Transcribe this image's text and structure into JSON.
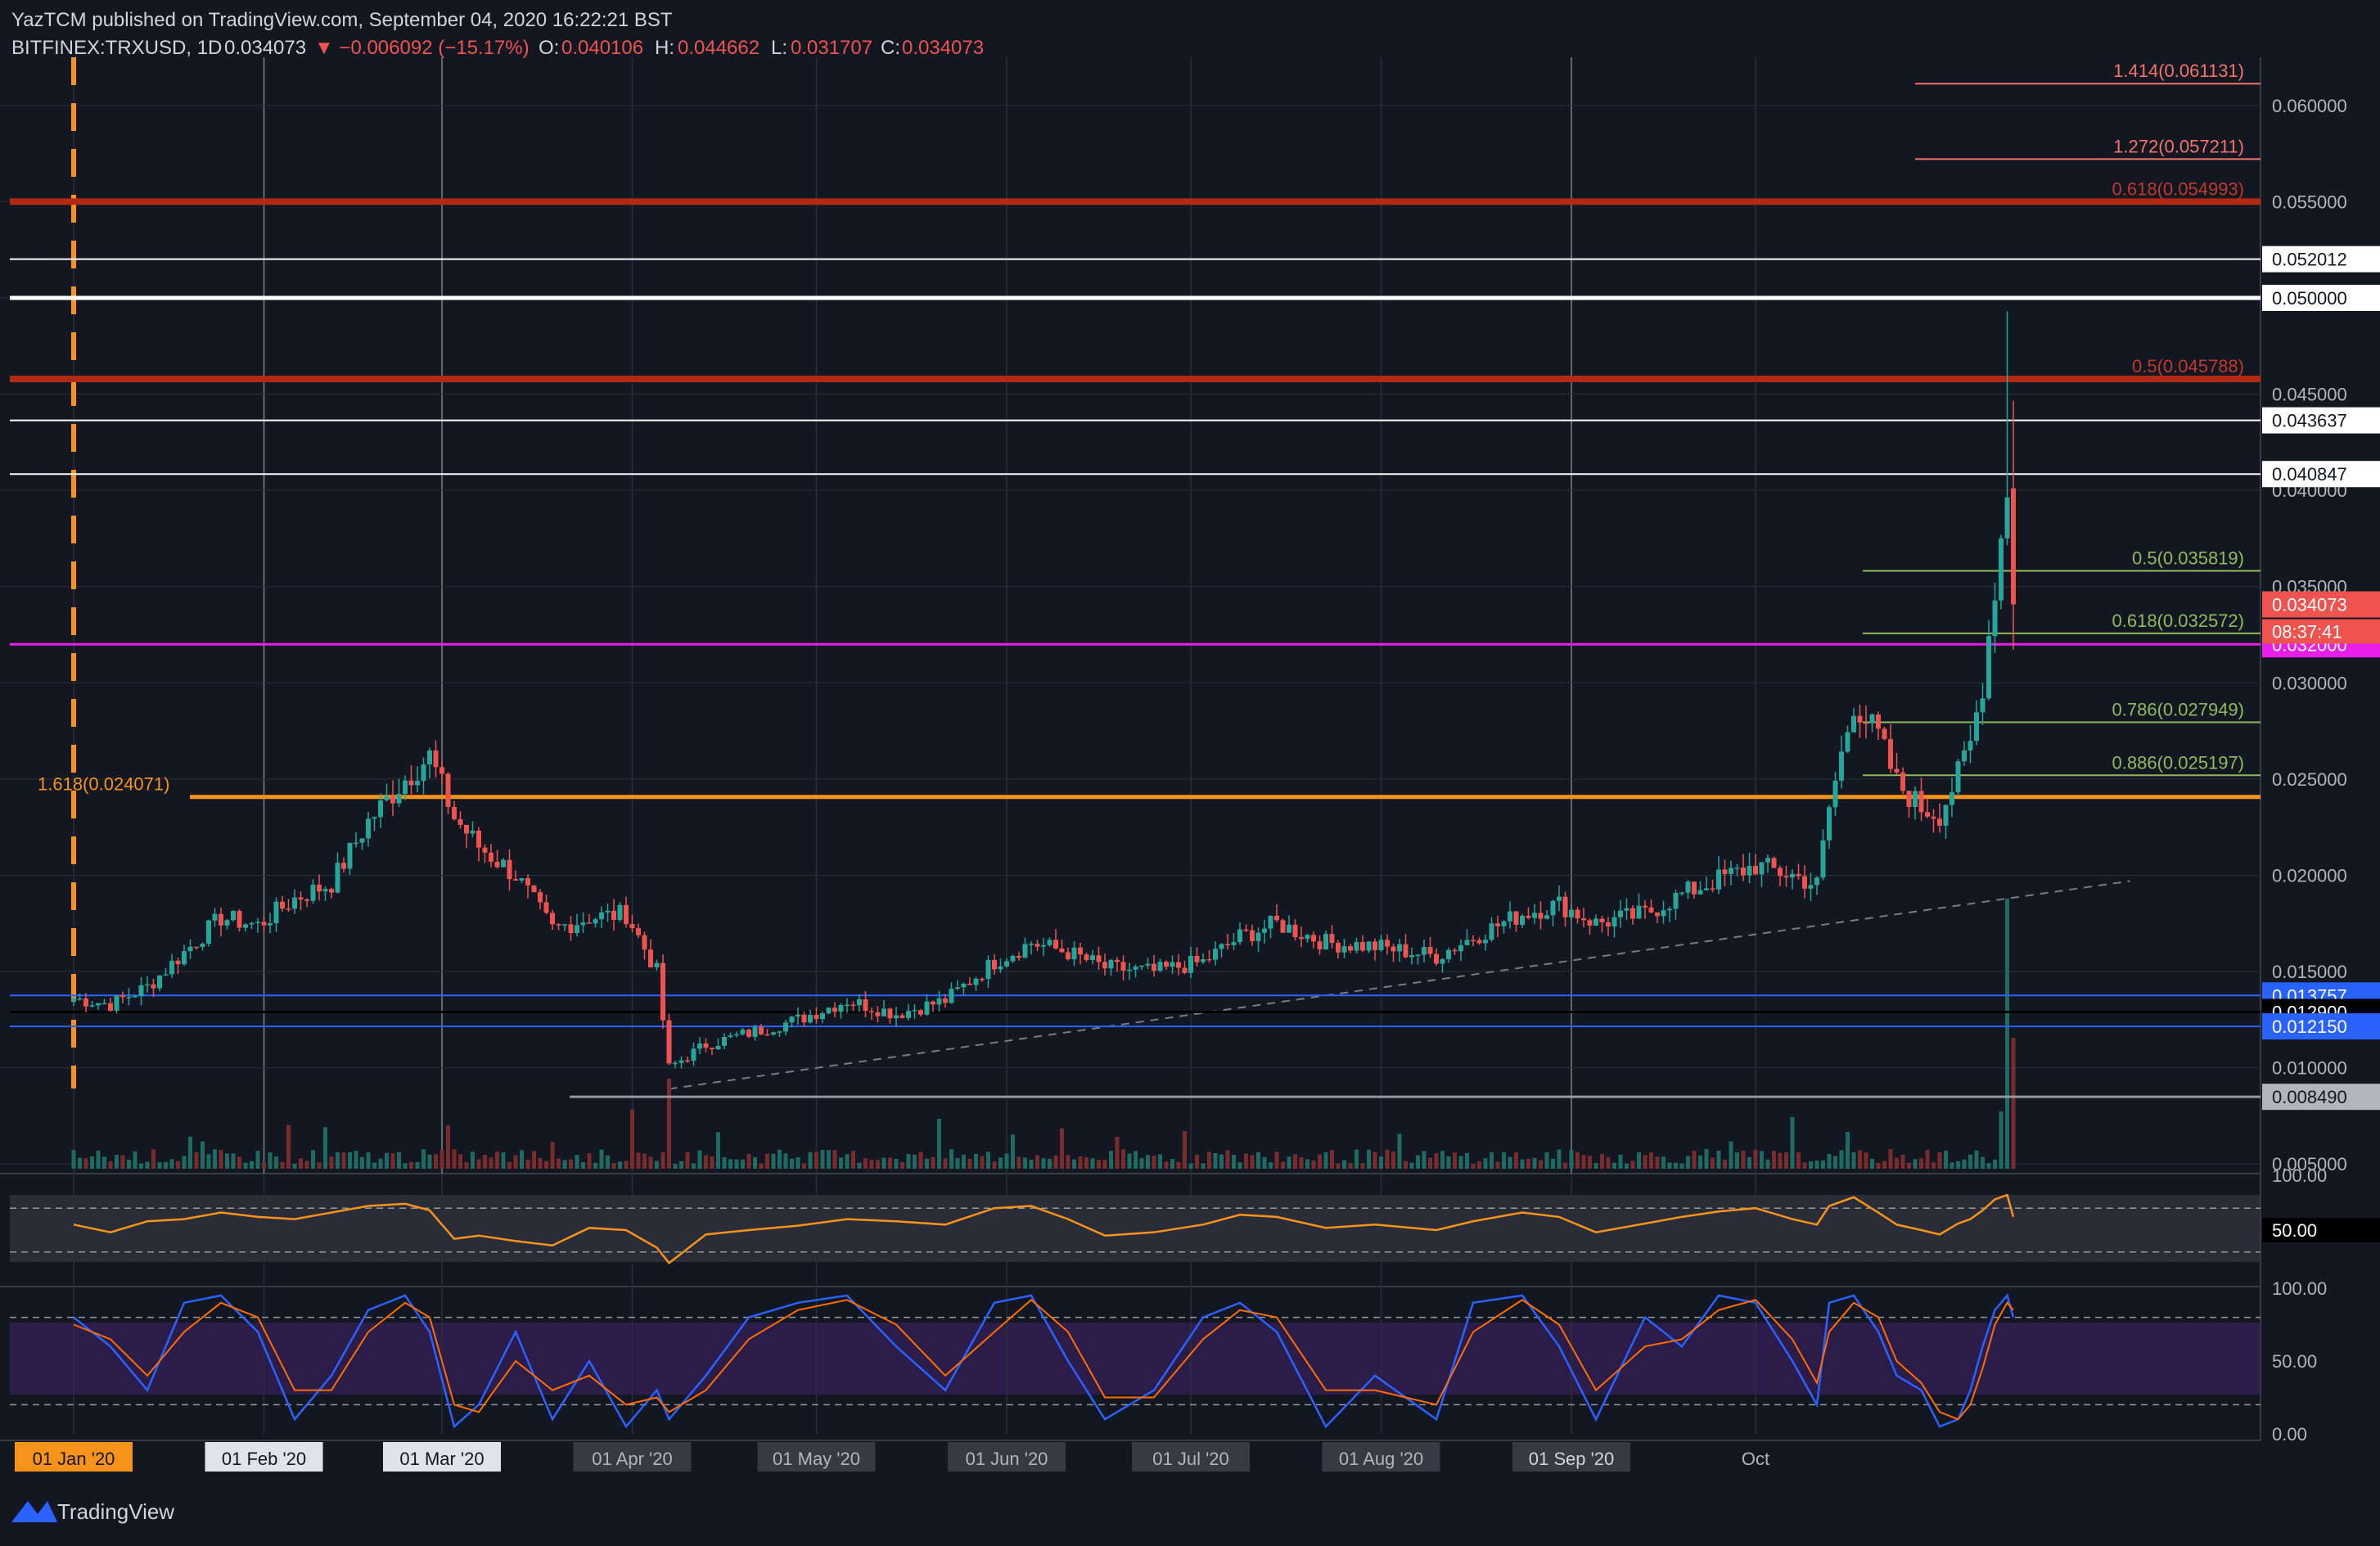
{
  "header": {
    "publisher_line": "YazTCM published on TradingView.com, September 04, 2020 16:22:21 BST",
    "symbol": "BITFINEX:TRXUSD, 1D",
    "last": "0.034073",
    "change": "▼ −0.006092 (−15.17%)",
    "o_label": "O:",
    "o": "0.040106",
    "h_label": "H:",
    "h": "0.044662",
    "l_label": "L:",
    "l": "0.031707",
    "c_label": "C:",
    "c": "0.034073"
  },
  "footer": {
    "brand": "TradingView"
  },
  "colors": {
    "bg": "#131722",
    "grid": "#2a2e39",
    "up": "#26a69a",
    "down": "#ef5350",
    "orange": "#f7931a",
    "red_line": "#b22a14",
    "magenta": "#e91ee9",
    "blue": "#2962ff",
    "fib_red": "#f57468",
    "fib_green": "#8fbc5a",
    "white": "#ffffff"
  },
  "chart_data": [
    {
      "type": "candlestick",
      "title": "BITFINEX:TRXUSD, 1D",
      "x_ticks": [
        "01 Jan '20",
        "01 Feb '20",
        "01 Mar '20",
        "01 Apr '20",
        "01 May '20",
        "01 Jun '20",
        "01 Jul '20",
        "01 Aug '20",
        "01 Sep '20",
        "Oct"
      ],
      "y_ticks": [
        "0.060000",
        "0.055000",
        "0.050000",
        "0.045000",
        "0.040000",
        "0.035000",
        "0.030000",
        "0.025000",
        "0.020000",
        "0.015000",
        "0.010000",
        "0.005000"
      ],
      "ylim": [
        0.0045,
        0.0625
      ],
      "grid": true,
      "candle_anchors": [
        {
          "day": 0,
          "close": 0.0136
        },
        {
          "day": 6,
          "close": 0.0133
        },
        {
          "day": 12,
          "close": 0.0142
        },
        {
          "day": 18,
          "close": 0.016
        },
        {
          "day": 24,
          "close": 0.0178
        },
        {
          "day": 30,
          "close": 0.0174
        },
        {
          "day": 36,
          "close": 0.0188
        },
        {
          "day": 42,
          "close": 0.0196
        },
        {
          "day": 48,
          "close": 0.0228
        },
        {
          "day": 54,
          "close": 0.025
        },
        {
          "day": 58,
          "close": 0.0262
        },
        {
          "day": 62,
          "close": 0.023
        },
        {
          "day": 66,
          "close": 0.0215
        },
        {
          "day": 72,
          "close": 0.02
        },
        {
          "day": 78,
          "close": 0.0172
        },
        {
          "day": 84,
          "close": 0.0178
        },
        {
          "day": 90,
          "close": 0.018
        },
        {
          "day": 95,
          "close": 0.015
        },
        {
          "day": 97,
          "close": 0.01
        },
        {
          "day": 103,
          "close": 0.0112
        },
        {
          "day": 110,
          "close": 0.0118
        },
        {
          "day": 118,
          "close": 0.0125
        },
        {
          "day": 126,
          "close": 0.0135
        },
        {
          "day": 134,
          "close": 0.0128
        },
        {
          "day": 142,
          "close": 0.0135
        },
        {
          "day": 150,
          "close": 0.0155
        },
        {
          "day": 156,
          "close": 0.0165
        },
        {
          "day": 162,
          "close": 0.016
        },
        {
          "day": 168,
          "close": 0.0152
        },
        {
          "day": 176,
          "close": 0.015
        },
        {
          "day": 184,
          "close": 0.0155
        },
        {
          "day": 190,
          "close": 0.0168
        },
        {
          "day": 196,
          "close": 0.0175
        },
        {
          "day": 204,
          "close": 0.0165
        },
        {
          "day": 212,
          "close": 0.0163
        },
        {
          "day": 222,
          "close": 0.0158
        },
        {
          "day": 228,
          "close": 0.0168
        },
        {
          "day": 236,
          "close": 0.018
        },
        {
          "day": 242,
          "close": 0.0185
        },
        {
          "day": 248,
          "close": 0.0175
        },
        {
          "day": 256,
          "close": 0.018
        },
        {
          "day": 262,
          "close": 0.019
        },
        {
          "day": 268,
          "close": 0.0198
        },
        {
          "day": 274,
          "close": 0.0205
        },
        {
          "day": 280,
          "close": 0.02
        },
        {
          "day": 284,
          "close": 0.0195
        },
        {
          "day": 286,
          "close": 0.0235
        },
        {
          "day": 290,
          "close": 0.029
        },
        {
          "day": 294,
          "close": 0.0272
        },
        {
          "day": 297,
          "close": 0.0248
        },
        {
          "day": 301,
          "close": 0.0235
        },
        {
          "day": 304,
          "close": 0.0232
        },
        {
          "day": 307,
          "close": 0.0252
        },
        {
          "day": 309,
          "close": 0.0268
        },
        {
          "day": 311,
          "close": 0.03
        },
        {
          "day": 313,
          "close": 0.035
        },
        {
          "day": 315,
          "close": 0.0401
        },
        {
          "day": 316,
          "close": 0.0341
        }
      ],
      "last_candle": {
        "open": 0.040106,
        "high": 0.044662,
        "low": 0.031707,
        "close": 0.034073
      },
      "horizontal_levels": [
        {
          "value": 0.055,
          "color": "red"
        },
        {
          "value": 0.052012,
          "color": "white",
          "label": "0.052012"
        },
        {
          "value": 0.05,
          "color": "white",
          "label": "0.050000"
        },
        {
          "value": 0.045788,
          "color": "red"
        },
        {
          "value": 0.043637,
          "color": "white",
          "label": "0.043637"
        },
        {
          "value": 0.040847,
          "color": "white",
          "label": "0.040847"
        },
        {
          "value": 0.032,
          "color": "magenta",
          "label": "0.032000"
        },
        {
          "value": 0.024071,
          "color": "orange"
        },
        {
          "value": 0.013757,
          "color": "blue",
          "label": "0.013757"
        },
        {
          "value": 0.0129,
          "color": "dark",
          "label": "0.012900"
        },
        {
          "value": 0.01215,
          "color": "blue",
          "label": "0.012150"
        },
        {
          "value": 0.00849,
          "color": "gray",
          "label": "0.008490"
        }
      ],
      "fib_levels": [
        {
          "label": "1.414(0.061131)",
          "value": 0.061131
        },
        {
          "label": "1.272(0.057211)",
          "value": 0.057211
        },
        {
          "label": "0.618(0.054993)",
          "value": 0.054993
        },
        {
          "label": "0.5(0.045788)",
          "value": 0.045788
        },
        {
          "label": "0.5(0.035819)",
          "value": 0.035819
        },
        {
          "label": "0.618(0.032572)",
          "value": 0.032572
        },
        {
          "label": "0.786(0.027949)",
          "value": 0.027949
        },
        {
          "label": "0.886(0.025197)",
          "value": 0.025197
        },
        {
          "label": "1.618(0.024071)",
          "value": 0.024071
        }
      ],
      "price_label": {
        "value": "0.034073",
        "countdown": "08:37:41"
      },
      "annotations": [
        "dashed orange vertical line at 01 Jan '20",
        "dashed gray rising trend line"
      ]
    },
    {
      "type": "line",
      "name": "RSI",
      "y_ticks": [
        "100.00",
        "50.00"
      ],
      "levels": [
        70,
        30
      ],
      "ylim": [
        0,
        100
      ],
      "x_days": [
        0,
        6,
        12,
        18,
        24,
        30,
        36,
        42,
        48,
        54,
        58,
        62,
        66,
        72,
        78,
        84,
        90,
        95,
        97,
        103,
        110,
        118,
        126,
        134,
        142,
        150,
        156,
        162,
        168,
        176,
        184,
        190,
        196,
        204,
        212,
        222,
        228,
        236,
        242,
        248,
        256,
        262,
        268,
        274,
        280,
        284,
        286,
        290,
        294,
        297,
        301,
        304,
        307,
        309,
        311,
        313,
        315,
        316
      ],
      "values": [
        55,
        48,
        58,
        60,
        66,
        62,
        60,
        66,
        72,
        74,
        68,
        42,
        45,
        40,
        36,
        52,
        50,
        34,
        20,
        46,
        50,
        54,
        60,
        58,
        55,
        70,
        72,
        60,
        45,
        48,
        55,
        64,
        62,
        52,
        55,
        50,
        58,
        66,
        62,
        48,
        56,
        62,
        67,
        70,
        60,
        55,
        72,
        80,
        66,
        55,
        50,
        46,
        56,
        60,
        68,
        78,
        82,
        62
      ]
    },
    {
      "type": "line",
      "name": "Stoch RSI",
      "y_ticks": [
        "100.00",
        "50.00",
        "0.00"
      ],
      "levels": [
        80,
        20
      ],
      "ylim": [
        0,
        100
      ],
      "x_days": [
        0,
        6,
        12,
        18,
        24,
        30,
        36,
        42,
        48,
        54,
        58,
        62,
        66,
        72,
        78,
        84,
        90,
        95,
        97,
        103,
        110,
        118,
        126,
        134,
        142,
        150,
        156,
        162,
        168,
        176,
        184,
        190,
        196,
        204,
        212,
        222,
        228,
        236,
        242,
        248,
        256,
        262,
        268,
        274,
        280,
        284,
        286,
        290,
        294,
        297,
        301,
        304,
        307,
        309,
        311,
        313,
        315,
        316
      ],
      "k_values": [
        80,
        60,
        30,
        90,
        95,
        70,
        10,
        40,
        85,
        95,
        70,
        5,
        20,
        70,
        10,
        50,
        5,
        30,
        10,
        40,
        80,
        90,
        95,
        60,
        30,
        90,
        95,
        50,
        10,
        30,
        80,
        90,
        70,
        5,
        40,
        10,
        90,
        95,
        60,
        10,
        80,
        60,
        95,
        90,
        50,
        20,
        90,
        95,
        70,
        40,
        30,
        5,
        10,
        30,
        60,
        85,
        95,
        80
      ],
      "d_values": [
        75,
        65,
        40,
        70,
        90,
        80,
        30,
        30,
        70,
        90,
        80,
        20,
        15,
        50,
        30,
        40,
        20,
        25,
        15,
        30,
        65,
        85,
        92,
        75,
        40,
        70,
        92,
        70,
        25,
        25,
        65,
        85,
        80,
        30,
        30,
        20,
        70,
        92,
        75,
        30,
        60,
        65,
        85,
        92,
        65,
        35,
        70,
        90,
        80,
        50,
        35,
        15,
        10,
        20,
        45,
        75,
        90,
        85
      ]
    }
  ],
  "time_axis_labels": [
    "01 Jan '20",
    "01 Feb '20",
    "01 Mar '20",
    "01 Apr '20",
    "01 May '20",
    "01 Jun '20",
    "01 Jul '20",
    "01 Aug '20",
    "01 Sep '20",
    "Oct"
  ]
}
